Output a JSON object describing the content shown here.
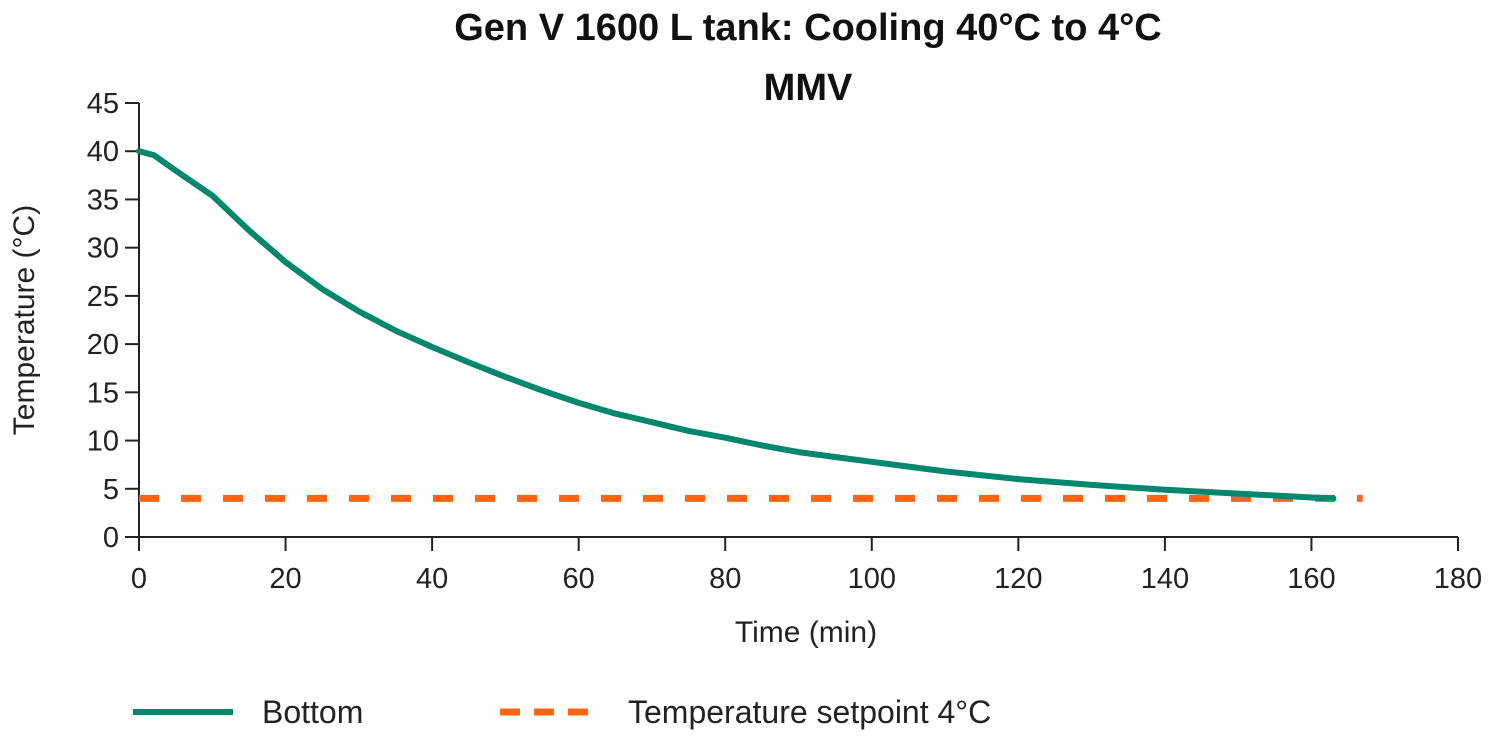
{
  "chart_data": {
    "type": "line",
    "title": "Gen V 1600 L tank: Cooling 40°C to 4°C",
    "subtitle": "MMV",
    "xlabel": "Time (min)",
    "ylabel": "Temperature (°C)",
    "xlim": [
      0,
      180
    ],
    "ylim": [
      0,
      45
    ],
    "xticks": [
      "0",
      "20",
      "40",
      "60",
      "80",
      "100",
      "120",
      "140",
      "160",
      "180"
    ],
    "yticks": [
      "0",
      "5",
      "10",
      "15",
      "20",
      "25",
      "30",
      "35",
      "40",
      "45"
    ],
    "grid": false,
    "legend_placement": "bottom",
    "series": [
      {
        "name": "Bottom",
        "color": "#00876d",
        "style": "solid",
        "x": [
          0,
          2,
          5,
          10,
          15,
          20,
          25,
          30,
          35,
          40,
          45,
          50,
          55,
          60,
          65,
          70,
          75,
          80,
          85,
          90,
          95,
          100,
          110,
          120,
          130,
          140,
          150,
          160,
          163
        ],
        "y": [
          40,
          39.6,
          38.0,
          35.4,
          31.8,
          28.5,
          25.7,
          23.4,
          21.4,
          19.7,
          18.1,
          16.6,
          15.2,
          13.9,
          12.8,
          11.9,
          11.0,
          10.3,
          9.5,
          8.8,
          8.3,
          7.8,
          6.8,
          6.0,
          5.4,
          4.9,
          4.5,
          4.1,
          4.0
        ]
      },
      {
        "name": "Temperature setpoint 4°C",
        "color": "#ff6412",
        "style": "dashed",
        "x": [
          0,
          167
        ],
        "y": [
          4,
          4
        ]
      }
    ]
  }
}
